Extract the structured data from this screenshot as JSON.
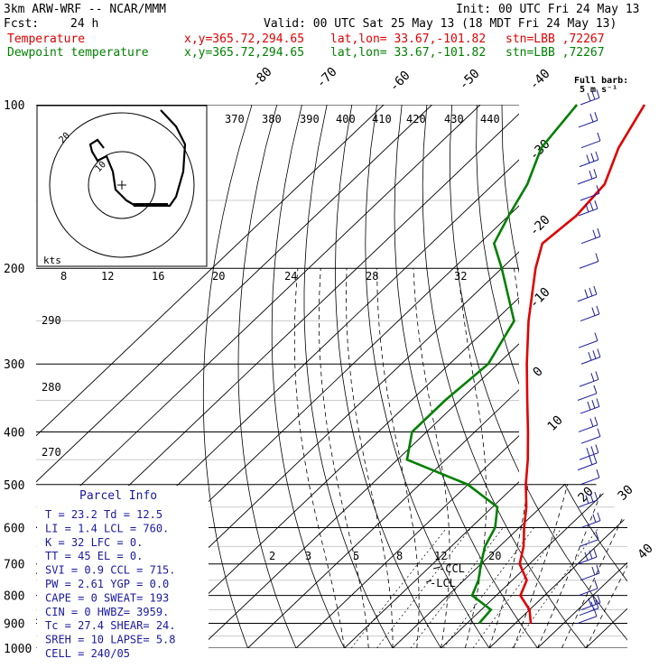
{
  "header": {
    "model": "3km ARW-WRF -- NCAR/MMM",
    "init": "Init: 00 UTC Fri 24 May 13",
    "fcst_label": "Fcst:",
    "fcst_value": "24 h",
    "valid": "Valid: 00 UTC Sat 25 May 13 (18 MDT Fri 24 May 13)",
    "temp_label": "Temperature",
    "dew_label": "Dewpoint temperature",
    "xy": "x,y=365.72,294.65",
    "latlon": "lat,lon= 33.67,-101.82",
    "stn": "stn=LBB ,72267"
  },
  "full_barb": {
    "line1": "Full barb:",
    "line2": "5 m s⁻¹"
  },
  "colors": {
    "temperature": "#e00000",
    "dewpoint": "#008000",
    "barbs": "#1a1aa0",
    "parcel": "#1a1aa0"
  },
  "parcel_info": {
    "title": "Parcel Info",
    "lines": [
      "T   =  23.2  Td =  12.5",
      "LI  =   1.4  LCL = 760.",
      "K   =    32  LFC =   0.",
      "TT  =    45  EL  =   0.",
      "SVI =   0.9  CCL = 715.",
      "PW  =  2.61  YGP =  0.0",
      "CAPE =    0  SWEAT=  193",
      "CIN  =    0  HWBZ= 3959.",
      "Tc   =  27.4  SHEAR=  24.",
      "SREH =    10  LAPSE=  5.8",
      "CELL = 240/05"
    ]
  },
  "chart_data": {
    "type": "skew-t",
    "pressure_levels": [
      "100",
      "200",
      "300",
      "400",
      "500",
      "600",
      "700",
      "800",
      "900",
      "1000"
    ],
    "isotherm_labels": [
      "-80",
      "-70",
      "-60",
      "-50",
      "-40",
      "-30",
      "-20",
      "-10",
      "0",
      "10",
      "20",
      "30",
      "40"
    ],
    "theta_labels": [
      "370",
      "380",
      "390",
      "400",
      "410",
      "420",
      "430",
      "440"
    ],
    "mixing_ratio_labels": [
      "2",
      "3",
      "5",
      "8",
      "12",
      "20"
    ],
    "theta_left_labels": [
      "290",
      "280",
      "270"
    ],
    "hodograph_speed_labels": [
      "8",
      "12",
      "16",
      "20",
      "24",
      "28",
      "32"
    ],
    "hodograph_units": "kts",
    "hodograph_rings": [
      "20",
      "10"
    ],
    "level_annotations": [
      "CCL",
      "LCL"
    ],
    "temperature": [
      {
        "p": 900,
        "t": 23.2
      },
      {
        "p": 850,
        "t": 20
      },
      {
        "p": 800,
        "t": 15
      },
      {
        "p": 750,
        "t": 13
      },
      {
        "p": 700,
        "t": 8
      },
      {
        "p": 650,
        "t": 5
      },
      {
        "p": 600,
        "t": 1
      },
      {
        "p": 550,
        "t": -3
      },
      {
        "p": 500,
        "t": -8
      },
      {
        "p": 450,
        "t": -13
      },
      {
        "p": 400,
        "t": -19
      },
      {
        "p": 350,
        "t": -26
      },
      {
        "p": 300,
        "t": -34
      },
      {
        "p": 250,
        "t": -43
      },
      {
        "p": 200,
        "t": -53
      },
      {
        "p": 180,
        "t": -57
      },
      {
        "p": 160,
        "t": -56
      },
      {
        "p": 140,
        "t": -57
      },
      {
        "p": 120,
        "t": -62
      },
      {
        "p": 100,
        "t": -66
      }
    ],
    "dewpoint": [
      {
        "p": 900,
        "t": 12.5
      },
      {
        "p": 850,
        "t": 12
      },
      {
        "p": 800,
        "t": 5
      },
      {
        "p": 750,
        "t": 3
      },
      {
        "p": 700,
        "t": 0
      },
      {
        "p": 650,
        "t": -3
      },
      {
        "p": 600,
        "t": -5
      },
      {
        "p": 550,
        "t": -9
      },
      {
        "p": 500,
        "t": -20
      },
      {
        "p": 450,
        "t": -38
      },
      {
        "p": 400,
        "t": -43
      },
      {
        "p": 350,
        "t": -43
      },
      {
        "p": 300,
        "t": -42
      },
      {
        "p": 250,
        "t": -46
      },
      {
        "p": 200,
        "t": -60
      },
      {
        "p": 180,
        "t": -67
      },
      {
        "p": 160,
        "t": -70
      },
      {
        "p": 140,
        "t": -73
      },
      {
        "p": 120,
        "t": -78
      },
      {
        "p": 100,
        "t": -80
      }
    ],
    "wind_barbs_p": [
      900,
      870,
      850,
      800,
      750,
      700,
      650,
      600,
      550,
      500,
      470,
      450,
      420,
      400,
      370,
      350,
      330,
      300,
      280,
      250,
      230,
      200,
      180,
      160,
      150,
      140,
      130,
      120,
      110,
      100
    ]
  }
}
